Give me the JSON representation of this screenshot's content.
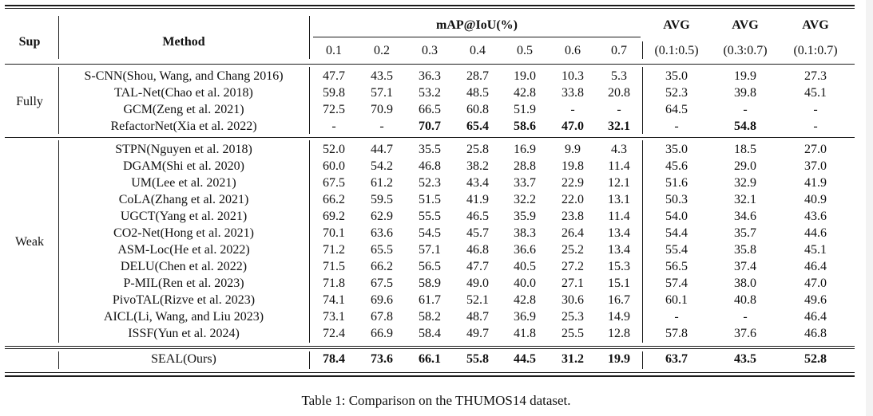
{
  "header": {
    "sup": "Sup",
    "method": "Method",
    "group_label": "mAP@IoU(%)",
    "thresholds": [
      "0.1",
      "0.2",
      "0.3",
      "0.4",
      "0.5",
      "0.6",
      "0.7"
    ],
    "avg_labels": [
      "AVG",
      "AVG",
      "AVG"
    ],
    "avg_ranges": [
      "(0.1:0.5)",
      "(0.3:0.7)",
      "(0.1:0.7)"
    ]
  },
  "groups": [
    {
      "sup": "Fully",
      "rows": [
        {
          "method": "S-CNN(Shou, Wang, and Chang 2016)",
          "values": [
            "47.7",
            "43.5",
            "36.3",
            "28.7",
            "19.0",
            "10.3",
            "5.3",
            "35.0",
            "19.9",
            "27.3"
          ],
          "bold": []
        },
        {
          "method": "TAL-Net(Chao et al. 2018)",
          "values": [
            "59.8",
            "57.1",
            "53.2",
            "48.5",
            "42.8",
            "33.8",
            "20.8",
            "52.3",
            "39.8",
            "45.1"
          ],
          "bold": []
        },
        {
          "method": "GCM(Zeng et al. 2021)",
          "values": [
            "72.5",
            "70.9",
            "66.5",
            "60.8",
            "51.9",
            "-",
            "-",
            "64.5",
            "-",
            "-"
          ],
          "bold": []
        },
        {
          "method": "RefactorNet(Xia et al. 2022)",
          "values": [
            "-",
            "-",
            "70.7",
            "65.4",
            "58.6",
            "47.0",
            "32.1",
            "-",
            "54.8",
            "-"
          ],
          "bold": [
            2,
            3,
            4,
            5,
            6,
            8
          ]
        }
      ]
    },
    {
      "sup": "Weak",
      "rows": [
        {
          "method": "STPN(Nguyen et al. 2018)",
          "values": [
            "52.0",
            "44.7",
            "35.5",
            "25.8",
            "16.9",
            "9.9",
            "4.3",
            "35.0",
            "18.5",
            "27.0"
          ],
          "bold": []
        },
        {
          "method": "DGAM(Shi et al. 2020)",
          "values": [
            "60.0",
            "54.2",
            "46.8",
            "38.2",
            "28.8",
            "19.8",
            "11.4",
            "45.6",
            "29.0",
            "37.0"
          ],
          "bold": []
        },
        {
          "method": "UM(Lee et al. 2021)",
          "values": [
            "67.5",
            "61.2",
            "52.3",
            "43.4",
            "33.7",
            "22.9",
            "12.1",
            "51.6",
            "32.9",
            "41.9"
          ],
          "bold": []
        },
        {
          "method": "CoLA(Zhang et al. 2021)",
          "values": [
            "66.2",
            "59.5",
            "51.5",
            "41.9",
            "32.2",
            "22.0",
            "13.1",
            "50.3",
            "32.1",
            "40.9"
          ],
          "bold": []
        },
        {
          "method": "UGCT(Yang et al. 2021)",
          "values": [
            "69.2",
            "62.9",
            "55.5",
            "46.5",
            "35.9",
            "23.8",
            "11.4",
            "54.0",
            "34.6",
            "43.6"
          ],
          "bold": []
        },
        {
          "method": "CO2-Net(Hong et al. 2021)",
          "values": [
            "70.1",
            "63.6",
            "54.5",
            "45.7",
            "38.3",
            "26.4",
            "13.4",
            "54.4",
            "35.7",
            "44.6"
          ],
          "bold": []
        },
        {
          "method": "ASM-Loc(He et al. 2022)",
          "values": [
            "71.2",
            "65.5",
            "57.1",
            "46.8",
            "36.6",
            "25.2",
            "13.4",
            "55.4",
            "35.8",
            "45.1"
          ],
          "bold": []
        },
        {
          "method": "DELU(Chen et al. 2022)",
          "values": [
            "71.5",
            "66.2",
            "56.5",
            "47.7",
            "40.5",
            "27.2",
            "15.3",
            "56.5",
            "37.4",
            "46.4"
          ],
          "bold": []
        },
        {
          "method": "P-MIL(Ren et al. 2023)",
          "values": [
            "71.8",
            "67.5",
            "58.9",
            "49.0",
            "40.0",
            "27.1",
            "15.1",
            "57.4",
            "38.0",
            "47.0"
          ],
          "bold": []
        },
        {
          "method": "PivoTAL(Rizve et al. 2023)",
          "values": [
            "74.1",
            "69.6",
            "61.7",
            "52.1",
            "42.8",
            "30.6",
            "16.7",
            "60.1",
            "40.8",
            "49.6"
          ],
          "bold": []
        },
        {
          "method": "AICL(Li, Wang, and Liu 2023)",
          "values": [
            "73.1",
            "67.8",
            "58.2",
            "48.7",
            "36.9",
            "25.3",
            "14.9",
            "-",
            "-",
            "46.4"
          ],
          "bold": []
        },
        {
          "method": "ISSF(Yun et al. 2024)",
          "values": [
            "72.4",
            "66.9",
            "58.4",
            "49.7",
            "41.8",
            "25.5",
            "12.8",
            "57.8",
            "37.6",
            "46.8"
          ],
          "bold": []
        }
      ]
    }
  ],
  "ours": {
    "method": "SEAL(Ours)",
    "values": [
      "78.4",
      "73.6",
      "66.1",
      "55.8",
      "44.5",
      "31.2",
      "19.9",
      "63.7",
      "43.5",
      "52.8"
    ],
    "bold": [
      0,
      1,
      2,
      3,
      4,
      5,
      6,
      7,
      8,
      9
    ]
  },
  "caption": "Table 1: Comparison on the THUMOS14 dataset."
}
